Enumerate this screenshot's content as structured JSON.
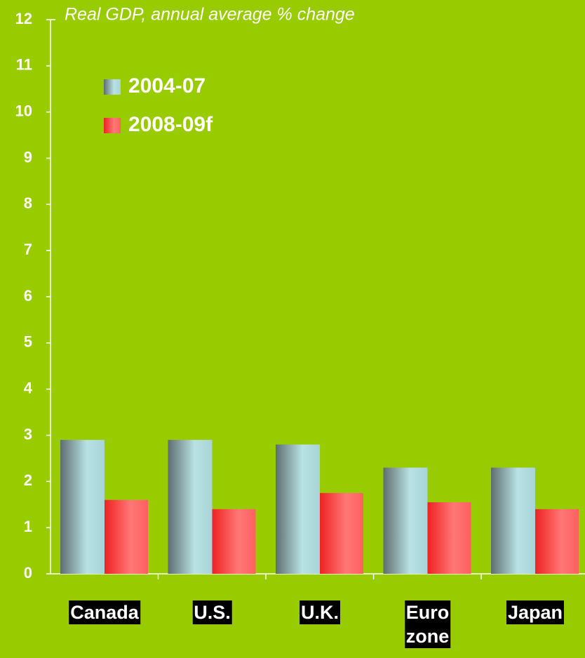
{
  "chart_data": {
    "type": "bar",
    "subtitle": "Real GDP, annual average % change",
    "categories": [
      "Canada",
      "U.S.",
      "U.K.",
      "Euro\nzone",
      "Japan"
    ],
    "series": [
      {
        "name": "2004-07",
        "color": "#a8d8dc",
        "values": [
          2.9,
          2.9,
          2.8,
          2.3,
          2.3
        ]
      },
      {
        "name": "2008-09f",
        "color": "#ff5050",
        "values": [
          1.6,
          1.4,
          1.75,
          1.55,
          1.4
        ]
      }
    ],
    "ylim": [
      0,
      12
    ],
    "yticks": [
      0,
      1,
      2,
      3,
      4,
      5,
      6,
      7,
      8,
      9,
      10,
      11,
      12
    ],
    "legend": "upper left"
  }
}
